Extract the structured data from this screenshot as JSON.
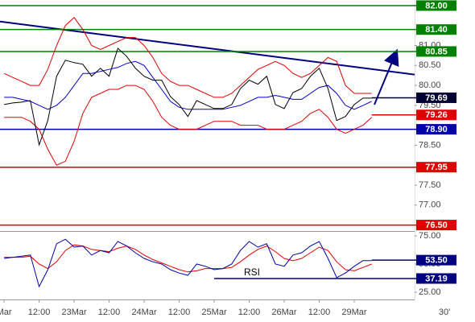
{
  "chart_data": [
    {
      "type": "line",
      "x": [
        0,
        3,
        6,
        9,
        12,
        15,
        18,
        21,
        24,
        27,
        30,
        33,
        36,
        39,
        42,
        45,
        48,
        51,
        54,
        57,
        60,
        63,
        66,
        69,
        72,
        75,
        78,
        81,
        84,
        87,
        90,
        93,
        96,
        99,
        102,
        105,
        108,
        111,
        114,
        117,
        120,
        123,
        126
      ],
      "xlim": [
        -1.4,
        140.7
      ],
      "ylim": [
        76.35,
        82.14
      ],
      "yticks": [
        {
          "value": 81,
          "label": "81.00"
        },
        {
          "value": 80.5,
          "label": "80.50"
        },
        {
          "value": 80,
          "label": "80.00"
        },
        {
          "value": 79.5,
          "label": "79.50"
        },
        {
          "value": 78.5,
          "label": "78.50"
        },
        {
          "value": 77.5,
          "label": "77.50"
        },
        {
          "value": 77,
          "label": "77.00"
        }
      ],
      "series": [
        {
          "color": "#e00000",
          "values": [
            80.3,
            80.2,
            80.1,
            80.0,
            80.0,
            80.4,
            81.0,
            81.5,
            81.7,
            81.4,
            81.0,
            80.9,
            81.0,
            81.1,
            81.2,
            81.2,
            81.0,
            80.7,
            80.3,
            80.1,
            80.0,
            80.0,
            79.9,
            79.8,
            79.7,
            79.7,
            79.8,
            80.0,
            80.2,
            80.4,
            80.5,
            80.6,
            80.5,
            80.3,
            80.2,
            80.3,
            80.5,
            80.7,
            80.6,
            80.0,
            79.8,
            79.8,
            79.8
          ]
        },
        {
          "color": "#e00000",
          "values": [
            79.2,
            79.2,
            79.2,
            79.1,
            78.9,
            78.4,
            78.0,
            78.1,
            78.6,
            79.3,
            79.7,
            79.8,
            79.9,
            79.9,
            80.0,
            80.0,
            79.9,
            79.6,
            79.2,
            79.0,
            78.9,
            78.9,
            78.9,
            79.0,
            79.1,
            79.1,
            79.1,
            79.0,
            79.0,
            79.0,
            78.9,
            78.9,
            78.9,
            79.0,
            79.1,
            79.3,
            79.4,
            79.2,
            78.9,
            78.8,
            78.9,
            79.0,
            79.2
          ]
        },
        {
          "color": "#0000cc",
          "values": [
            79.7,
            79.7,
            79.65,
            79.6,
            79.5,
            79.4,
            79.5,
            79.7,
            80.0,
            80.3,
            80.3,
            80.35,
            80.4,
            80.45,
            80.55,
            80.6,
            80.5,
            80.2,
            79.9,
            79.6,
            79.45,
            79.4,
            79.4,
            79.4,
            79.4,
            79.4,
            79.45,
            79.5,
            79.6,
            79.7,
            79.7,
            79.75,
            79.7,
            79.65,
            79.65,
            79.8,
            79.95,
            80.0,
            79.8,
            79.5,
            79.4,
            79.5,
            79.6
          ]
        },
        {
          "color": "#000000",
          "values": [
            79.52,
            79.56,
            79.58,
            79.62,
            78.51,
            79.12,
            80.23,
            80.63,
            80.57,
            80.53,
            80.23,
            80.43,
            80.23,
            80.93,
            80.73,
            80.43,
            80.23,
            80.13,
            80.13,
            79.72,
            79.52,
            79.22,
            79.62,
            79.52,
            79.42,
            79.42,
            79.52,
            79.92,
            80.13,
            80.03,
            80.23,
            79.52,
            79.42,
            79.82,
            79.92,
            80.23,
            80.43,
            79.92,
            79.12,
            79.22,
            79.52,
            79.68,
            79.68
          ]
        }
      ],
      "trendline": {
        "x": [
          -1.4,
          140.7
        ],
        "y": [
          81.6,
          80.27
        ],
        "color": "#000080"
      },
      "levels": [
        {
          "value": 82,
          "label": "82.00",
          "color": "#008000"
        },
        {
          "value": 81.4,
          "label": "81.40",
          "color": "#008000"
        },
        {
          "value": 80.85,
          "label": "80.85",
          "color": "#008000"
        },
        {
          "value": 79.69,
          "label": "79.69",
          "color": "#000033",
          "from": 126
        },
        {
          "value": 79.26,
          "label": "79.26",
          "color": "#e00000",
          "from": 126
        },
        {
          "value": 78.9,
          "label": "78.90",
          "color": "#0000aa"
        },
        {
          "value": 77.95,
          "label": "77.95",
          "color": "#e00000"
        },
        {
          "value": 76.5,
          "label": "76.50",
          "color": "#e00000"
        }
      ]
    },
    {
      "type": "line",
      "annotation": "RSI",
      "timeframe": "30'",
      "x": [
        0,
        3,
        6,
        9,
        12,
        15,
        18,
        21,
        24,
        27,
        30,
        33,
        36,
        39,
        42,
        45,
        48,
        51,
        54,
        57,
        60,
        63,
        66,
        69,
        72,
        75,
        78,
        81,
        84,
        87,
        90,
        93,
        96,
        99,
        102,
        105,
        108,
        111,
        114,
        117,
        120,
        123,
        126
      ],
      "xlim": [
        -1.4,
        140.7
      ],
      "xticks": [
        {
          "value": 0,
          "label": "Mar"
        },
        {
          "value": 12,
          "label": "12:00"
        },
        {
          "value": 24,
          "label": "23Mar"
        },
        {
          "value": 36,
          "label": "12:00"
        },
        {
          "value": 48,
          "label": "24Mar"
        },
        {
          "value": 60,
          "label": "12:00"
        },
        {
          "value": 72,
          "label": "25Mar"
        },
        {
          "value": 84,
          "label": "12:00"
        },
        {
          "value": 96,
          "label": "26Mar"
        },
        {
          "value": 108,
          "label": "12:00"
        },
        {
          "value": 120,
          "label": "29Mar"
        }
      ],
      "ylim": [
        18.6,
        78.6
      ],
      "yticks": [
        {
          "value": 75,
          "label": "75.00"
        },
        {
          "value": 50,
          "label": "50.00"
        },
        {
          "value": 25,
          "label": "25.00"
        }
      ],
      "series": [
        {
          "color": "#e00000",
          "values": [
            56,
            56,
            56,
            57,
            50,
            46,
            52,
            62,
            67,
            66,
            63,
            62,
            61,
            64,
            66,
            63,
            58,
            54,
            51,
            48,
            45,
            43,
            44,
            46,
            46,
            46,
            47,
            52,
            58,
            63,
            66,
            61,
            55,
            53,
            55,
            60,
            65,
            62,
            52,
            45,
            44,
            47,
            50
          ]
        },
        {
          "color": "#0000aa",
          "values": [
            55,
            56,
            57,
            58,
            30,
            45,
            68,
            72,
            65,
            66,
            58,
            62,
            60,
            70,
            66,
            60,
            55,
            52,
            50,
            45,
            42,
            40,
            50,
            48,
            45,
            46,
            50,
            62,
            70,
            65,
            68,
            50,
            48,
            58,
            60,
            66,
            70,
            55,
            38,
            42,
            48,
            53,
            53
          ]
        }
      ],
      "levels": [
        {
          "value": 53.5,
          "label": "53.50",
          "color": "#000080",
          "from": 126
        },
        {
          "value": 37.19,
          "label": "37.19",
          "color": "#000080",
          "from": 72
        }
      ]
    }
  ]
}
